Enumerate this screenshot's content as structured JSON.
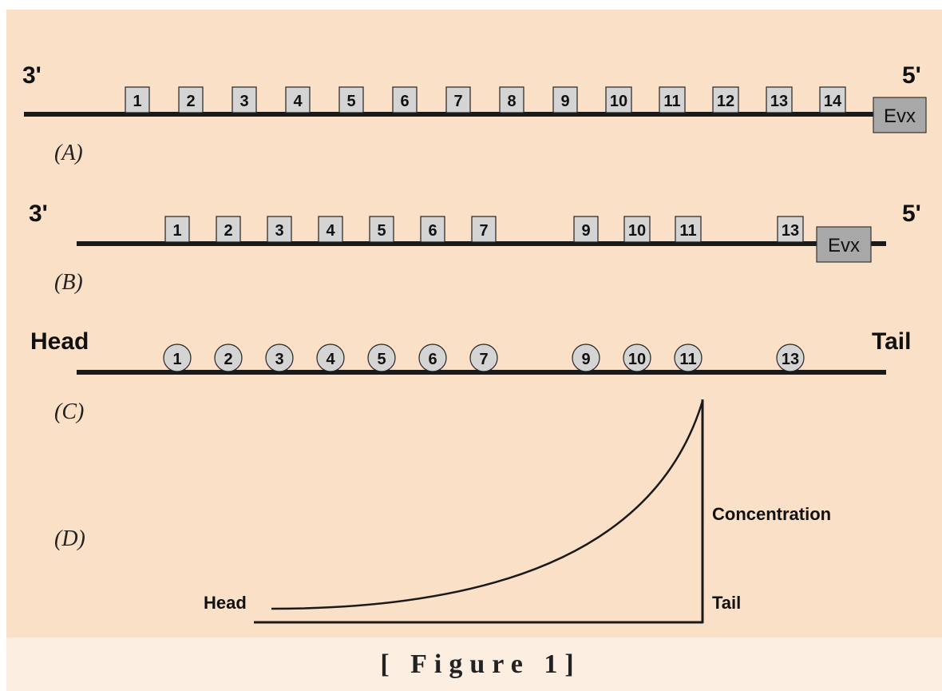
{
  "rows": {
    "A": {
      "label": "(A)",
      "left_end": "3'",
      "right_end": "5'",
      "genes": [
        "1",
        "2",
        "3",
        "4",
        "5",
        "6",
        "7",
        "8",
        "9",
        "10",
        "11",
        "12",
        "13",
        "14"
      ],
      "terminal": "Evx"
    },
    "B": {
      "label": "(B)",
      "left_end": "3'",
      "right_end": "5'",
      "genes": [
        "1",
        "2",
        "3",
        "4",
        "5",
        "6",
        "7",
        "9",
        "10",
        "11",
        "13"
      ],
      "terminal": "Evx"
    },
    "C": {
      "label": "(C)",
      "left_end": "Head",
      "right_end": "Tail",
      "segments": [
        "1",
        "2",
        "3",
        "4",
        "5",
        "6",
        "7",
        "9",
        "10",
        "11",
        "13"
      ]
    },
    "D": {
      "label": "(D)",
      "curve_start_label": "Head",
      "axis_label": "Concentration",
      "axis_base_label": "Tail"
    }
  },
  "caption": "[ Figure 1]",
  "colors": {
    "panel_bg": "#fbe0c8",
    "caption_bg": "#fcefe2",
    "gene_box": "#d4d4d4",
    "evx_box": "#a8a8a8",
    "line": "#1a1a1a"
  }
}
